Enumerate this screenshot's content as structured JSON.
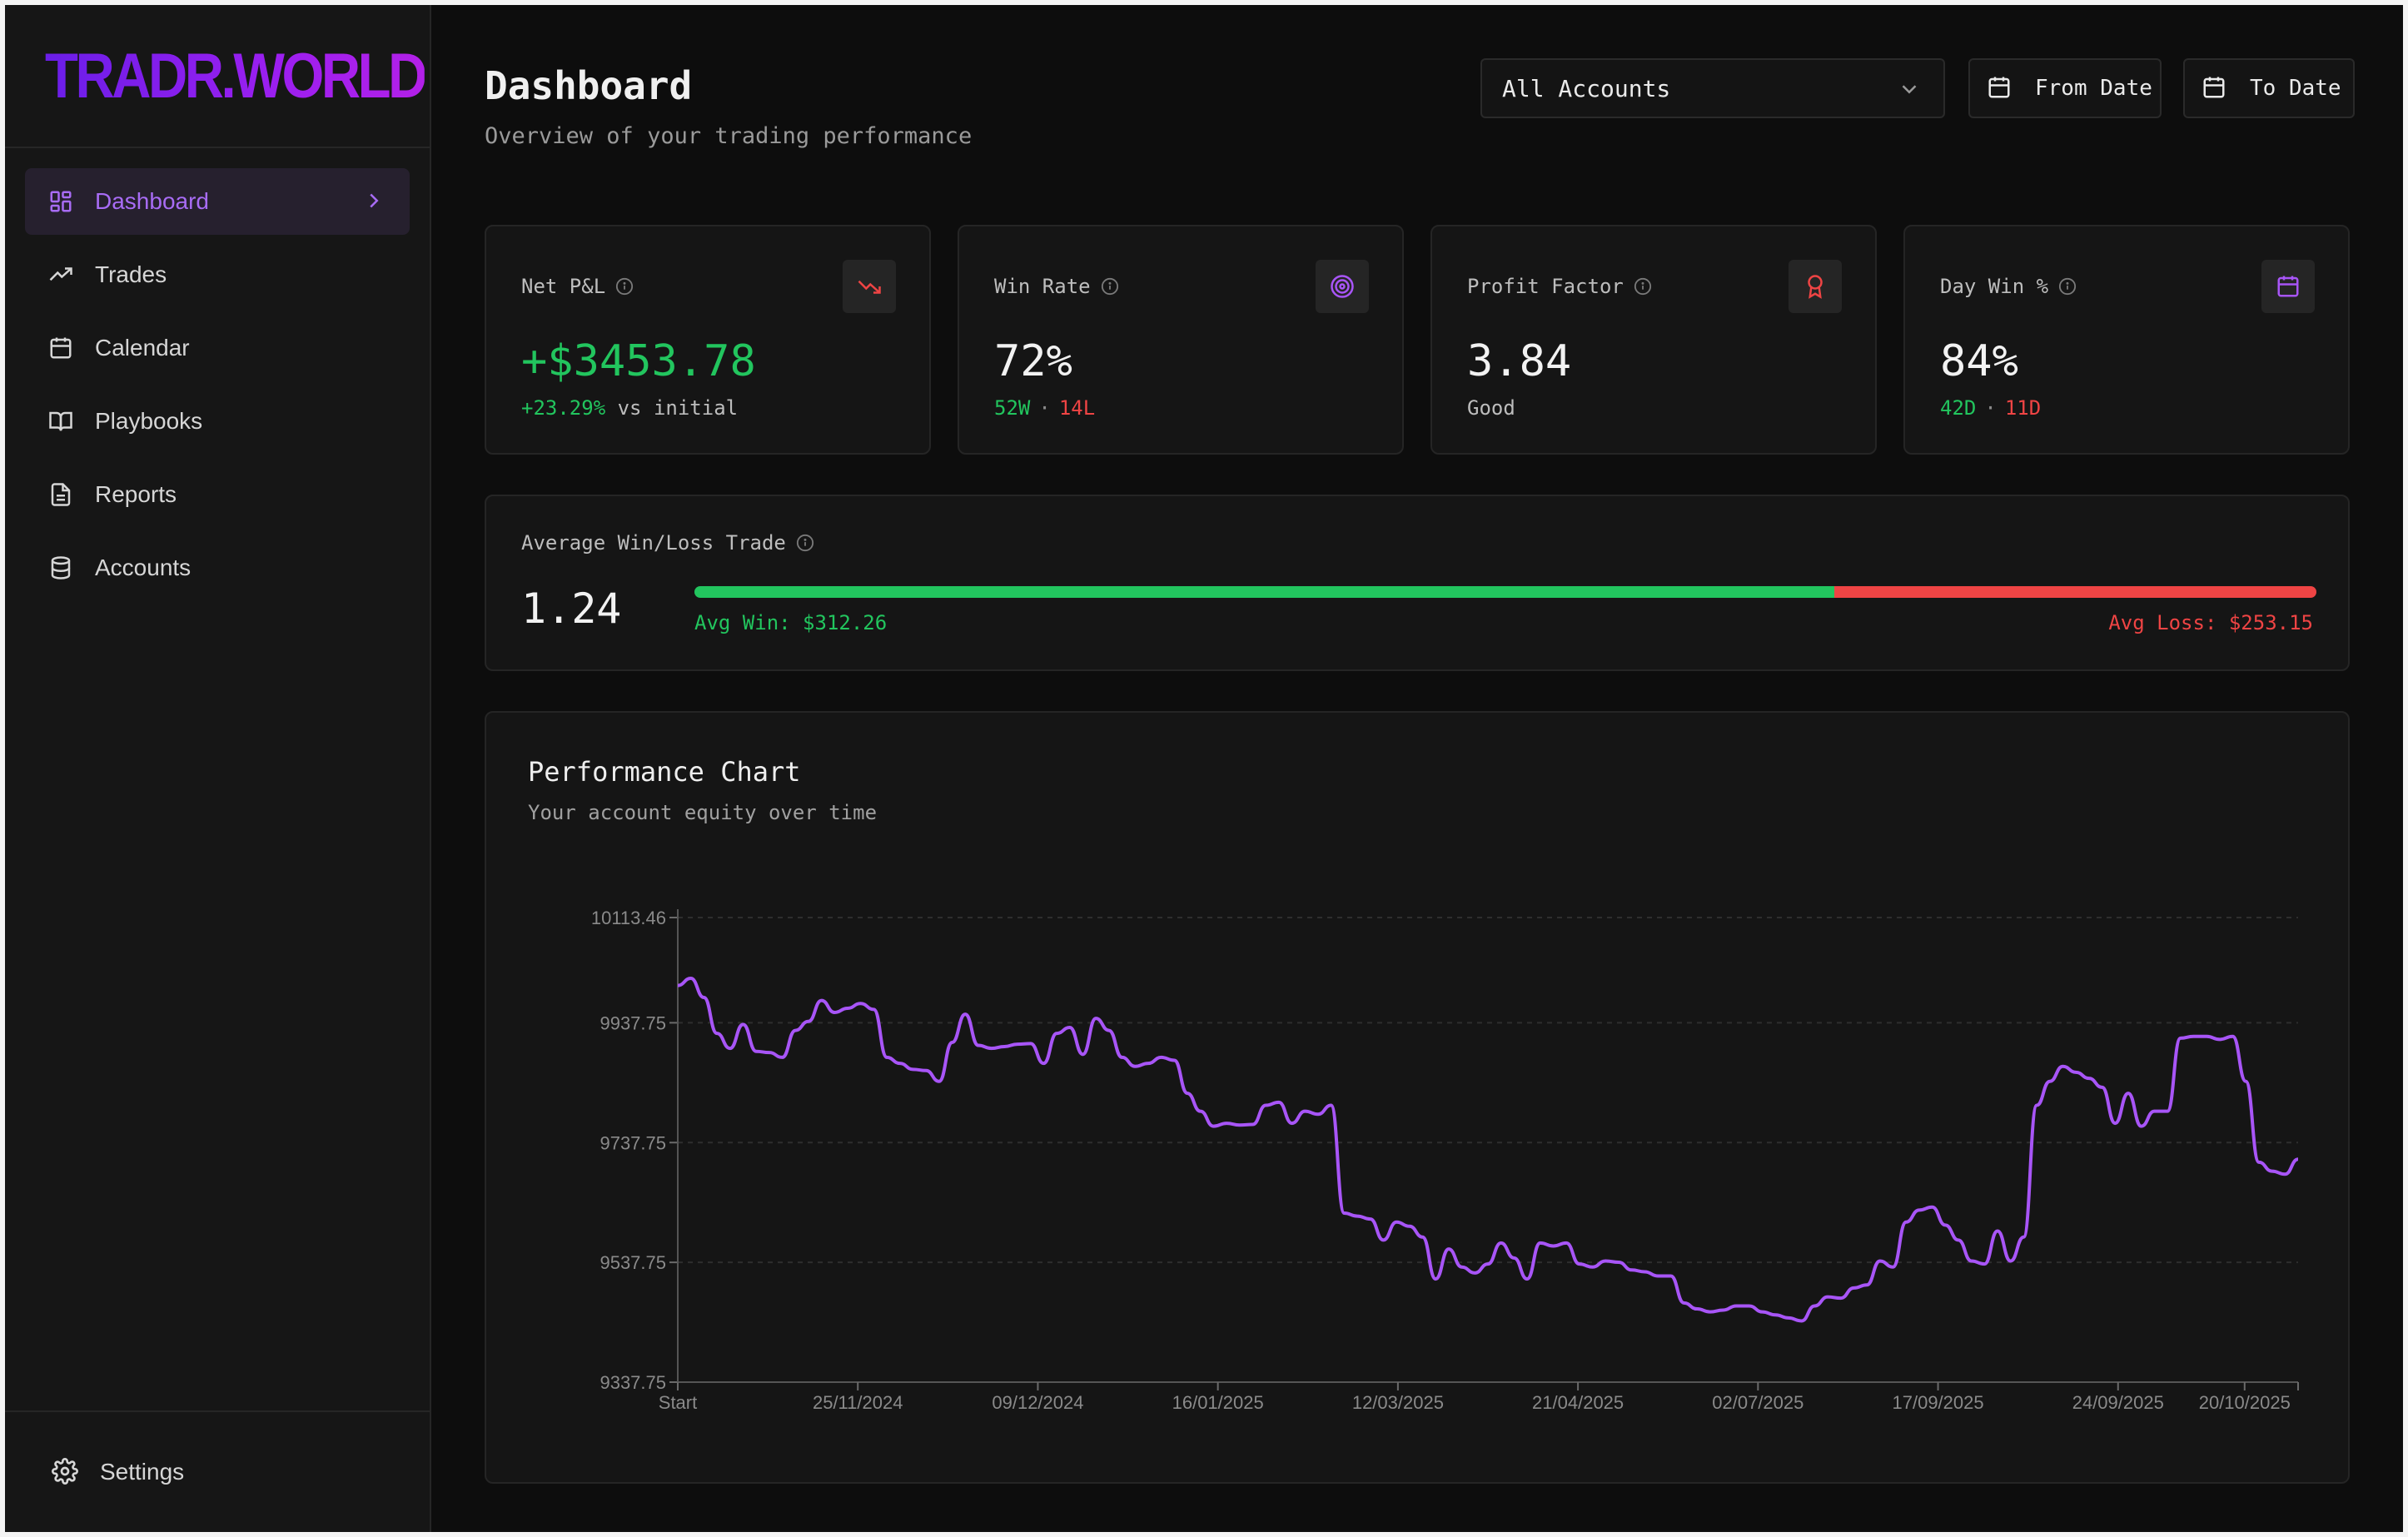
{
  "brand": {
    "logo": "TRADR.WORLD"
  },
  "sidebar": {
    "items": [
      {
        "label": "Dashboard",
        "icon": "dashboard-icon",
        "active": true
      },
      {
        "label": "Trades",
        "icon": "trending-up-icon"
      },
      {
        "label": "Calendar",
        "icon": "calendar-icon"
      },
      {
        "label": "Playbooks",
        "icon": "book-open-icon"
      },
      {
        "label": "Reports",
        "icon": "file-text-icon"
      },
      {
        "label": "Accounts",
        "icon": "database-icon"
      }
    ],
    "settings_label": "Settings"
  },
  "header": {
    "title": "Dashboard",
    "subtitle": "Overview of your trading performance",
    "account_select": "All Accounts",
    "from_date": "From Date",
    "to_date": "To Date"
  },
  "stats": {
    "net_pnl": {
      "label": "Net P&L",
      "value": "+$3453.78",
      "change": "+23.29%",
      "change_suffix": "vs initial",
      "icon": "trending-down-icon"
    },
    "win_rate": {
      "label": "Win Rate",
      "value": "72%",
      "wins": "52W",
      "losses": "14L",
      "icon": "target-icon"
    },
    "profit_factor": {
      "label": "Profit Factor",
      "value": "3.84",
      "rating": "Good",
      "icon": "award-icon"
    },
    "day_win": {
      "label": "Day Win %",
      "value": "84%",
      "win_days": "42D",
      "loss_days": "11D",
      "icon": "calendar-icon"
    }
  },
  "avg_win_loss": {
    "label": "Average Win/Loss Trade",
    "ratio": "1.24",
    "avg_win": "Avg Win: $312.26",
    "avg_loss": "Avg Loss: $253.15",
    "win_fraction": 0.703
  },
  "colors": {
    "accent": "#a855f7",
    "green": "#22c55e",
    "red": "#ef4444",
    "background": "#0d0d0d"
  },
  "performance": {
    "title": "Performance Chart",
    "subtitle": "Your account equity over time"
  },
  "chart_data": {
    "type": "line",
    "title": "Performance Chart",
    "ylim": [
      9337.75,
      10113.46
    ],
    "ytick_labels": [
      "10113.46",
      "9937.75",
      "9737.75",
      "9537.75",
      "9337.75"
    ],
    "yticks": [
      10113.46,
      9937.75,
      9737.75,
      9537.75,
      9337.75
    ],
    "xtick_labels": [
      "Start",
      "25/11/2024",
      "09/12/2024",
      "16/01/2025",
      "12/03/2025",
      "21/04/2025",
      "02/07/2025",
      "17/09/2025",
      "24/09/2025",
      "20/10/2025"
    ],
    "grid": true,
    "series": [
      {
        "values": [
          10000,
          10012,
          9980,
          9920,
          9895,
          9935,
          9890,
          9888,
          9880,
          9925,
          9940,
          9975,
          9955,
          9962,
          9970,
          9960,
          9880,
          9870,
          9860,
          9858,
          9840,
          9905,
          9952,
          9900,
          9895,
          9898,
          9902,
          9903,
          9870,
          9920,
          9930,
          9885,
          9945,
          9925,
          9880,
          9865,
          9870,
          9880,
          9875,
          9820,
          9790,
          9765,
          9770,
          9767,
          9768,
          9800,
          9805,
          9770,
          9790,
          9785,
          9800,
          9620,
          9615,
          9610,
          9575,
          9605,
          9598,
          9580,
          9510,
          9560,
          9530,
          9520,
          9535,
          9570,
          9545,
          9510,
          9570,
          9565,
          9570,
          9535,
          9530,
          9540,
          9538,
          9525,
          9522,
          9515,
          9515,
          9470,
          9460,
          9455,
          9458,
          9465,
          9465,
          9455,
          9450,
          9445,
          9440,
          9465,
          9480,
          9478,
          9495,
          9500,
          9540,
          9530,
          9605,
          9625,
          9630,
          9600,
          9575,
          9540,
          9535,
          9590,
          9540,
          9580,
          9800,
          9840,
          9865,
          9855,
          9845,
          9830,
          9770,
          9820,
          9765,
          9790,
          9790,
          9912,
          9915,
          9915,
          9910,
          9915,
          9840,
          9705,
          9690,
          9685,
          9710
        ]
      }
    ]
  }
}
